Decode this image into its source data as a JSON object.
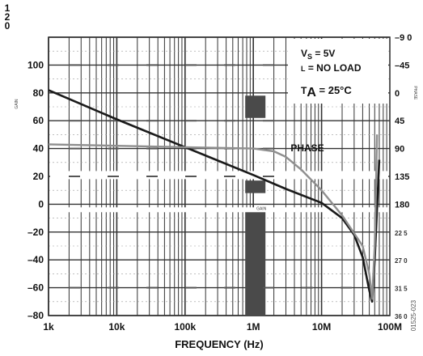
{
  "chart_data": {
    "type": "line",
    "title": "",
    "xlabel": "FREQUENCY (Hz)",
    "ylabel_left": "GAIN",
    "ylabel_right": "PHASE",
    "x_scale": "log",
    "xlim": [
      1000,
      100000000
    ],
    "ylim_left": [
      -80,
      120
    ],
    "ylim_right_label_order": "top to bottom",
    "x_tick_labels": [
      "1k",
      "10k",
      "100k",
      "1M",
      "10M",
      "100M"
    ],
    "x_tick_values": [
      1000,
      10000,
      100000,
      1000000,
      10000000,
      100000000
    ],
    "y_left_tick_labels": [
      "1\n2\n0",
      "100",
      "80",
      "60",
      "40",
      "20",
      "0",
      "–20",
      "–40",
      "–60",
      "–80"
    ],
    "y_left_tick_values": [
      120,
      100,
      80,
      60,
      40,
      20,
      0,
      -20,
      -40,
      -60,
      -80
    ],
    "y_right_tick_labels": [
      "–9 0",
      "–45",
      "0",
      "45",
      "90",
      "135",
      "180",
      "22 5",
      "27 0",
      "31 5",
      "36 0"
    ],
    "conditions": {
      "vs": "V",
      "vs_sub": "S",
      "vs_value": " = 5V",
      "load_prefix": "L",
      "load_value": " = NO LOAD",
      "ta": "T",
      "ta_sub": "A",
      "ta_value": " = 25°C"
    },
    "series": [
      {
        "name": "GAIN",
        "color": "#1a1a1a",
        "x": [
          1000,
          10000,
          100000,
          1000000,
          3000000,
          10000000,
          20000000,
          30000000,
          40000000,
          50000000,
          55000000,
          60000000,
          70000000
        ],
        "y": [
          82,
          61,
          41,
          21,
          11,
          1,
          -10,
          -22,
          -38,
          -62,
          -70,
          -40,
          32
        ]
      },
      {
        "name": "PHASE",
        "color": "#8f8f8f",
        "x": [
          1000,
          10000,
          100000,
          1000000,
          2000000,
          3000000,
          5000000,
          10000000,
          20000000,
          40000000,
          50000000,
          55000000,
          60000000,
          65000000
        ],
        "y": [
          43,
          42,
          41,
          40,
          38,
          34,
          25,
          10,
          -8,
          -30,
          -50,
          -68,
          -30,
          50
        ]
      }
    ],
    "annotations": [
      "PHASE",
      "GAIN"
    ],
    "figure_code": "01525-023",
    "grid": true,
    "background": "#ffffff",
    "grid_color": "#333333"
  }
}
